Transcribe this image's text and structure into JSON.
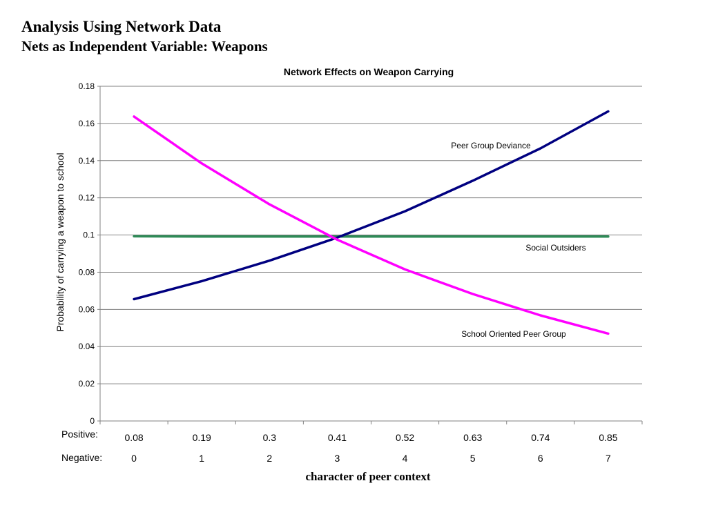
{
  "slide": {
    "title": "Analysis Using Network Data",
    "subtitle": "Nets as Independent Variable: Weapons"
  },
  "chart_data": {
    "type": "line",
    "title": "Network Effects on Weapon Carrying",
    "xlabel": "character of peer context",
    "ylabel": "Probability of carrying a weapon to school",
    "ylim": [
      0,
      0.18
    ],
    "yticks": [
      "0",
      "0.02",
      "0.04",
      "0.06",
      "0.08",
      "0.1",
      "0.12",
      "0.14",
      "0.16",
      "0.18"
    ],
    "x": [
      0,
      1,
      2,
      3,
      4,
      5,
      6,
      7
    ],
    "positive_label": "Positive:",
    "positive_values": [
      "0.08",
      "0.19",
      "0.3",
      "0.41",
      "0.52",
      "0.63",
      "0.74",
      "0.85"
    ],
    "negative_label": "Negative:",
    "negative_values": [
      "0",
      "1",
      "2",
      "3",
      "4",
      "5",
      "6",
      "7"
    ],
    "grid": true,
    "legend": "none",
    "series": [
      {
        "name": "Peer Group Deviance",
        "color": "#000080",
        "values": [
          0.0655,
          0.0752,
          0.0862,
          0.0986,
          0.1128,
          0.1292,
          0.1466,
          0.1665
        ]
      },
      {
        "name": "Social Outsiders",
        "color": "#2E8B57",
        "values": [
          0.0993,
          0.0992,
          0.0992,
          0.0992,
          0.0992,
          0.0992,
          0.0992,
          0.0992
        ]
      },
      {
        "name": "School Oriented Peer Group",
        "color": "#FF00FF",
        "values": [
          0.1637,
          0.1385,
          0.1165,
          0.0975,
          0.0815,
          0.0683,
          0.0568,
          0.047
        ]
      }
    ],
    "annotations": [
      {
        "series": "Peer Group Deviance",
        "text": "Peer Group Deviance"
      },
      {
        "series": "Social Outsiders",
        "text": "Social Outsiders"
      },
      {
        "series": "School Oriented Peer Group",
        "text": "School Oriented Peer Group"
      }
    ]
  }
}
